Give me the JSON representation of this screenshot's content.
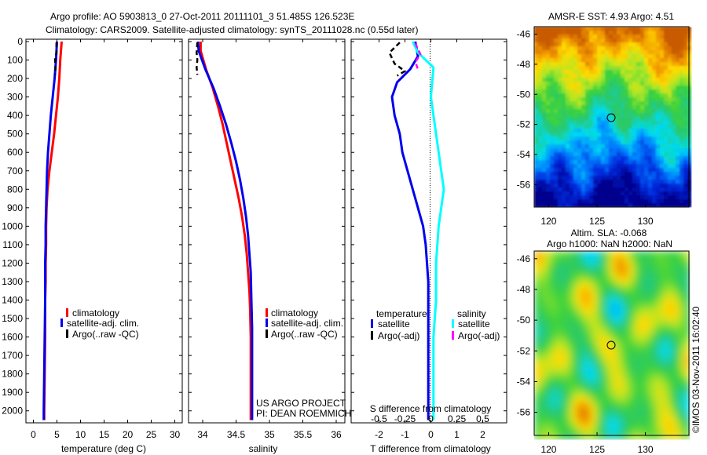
{
  "header": {
    "title_line1": "Argo profile: AO 5903813_0 27-Oct-2011 20111101_3 51.485S 126.523E",
    "title_line2": "Climatology: CARS2009. Satellite-adjusted climatology: synTS_20111028.nc (0.55d later)"
  },
  "colors": {
    "climatology": "#ff0000",
    "satellite": "#0000ee",
    "argo": "#000000",
    "salinity_satellite": "#00ffff",
    "salinity_argo": "#ff00ff"
  },
  "chart_data": [
    {
      "type": "line",
      "id": "temperature",
      "xlabel": "temperature (deg C)",
      "ylim": [
        0,
        2050
      ],
      "xlim": [
        -1,
        32
      ],
      "xticks": [
        0,
        5,
        10,
        15,
        20,
        25,
        30
      ],
      "yticks": [
        0,
        100,
        200,
        300,
        400,
        500,
        600,
        700,
        800,
        900,
        1000,
        1100,
        1200,
        1300,
        1400,
        1500,
        1600,
        1700,
        1800,
        1900,
        2000
      ],
      "legend": [
        "climatology",
        "satellite-adj. clim.",
        "Argo(..raw -QC)"
      ],
      "series": [
        {
          "name": "climatology",
          "color": "#ff0000",
          "points": [
            [
              6.0,
              0
            ],
            [
              5.7,
              100
            ],
            [
              5.5,
              200
            ],
            [
              5.2,
              300
            ],
            [
              4.8,
              400
            ],
            [
              4.4,
              500
            ],
            [
              3.9,
              600
            ],
            [
              3.4,
              700
            ],
            [
              3.0,
              800
            ],
            [
              2.8,
              900
            ],
            [
              2.7,
              1000
            ],
            [
              2.7,
              1100
            ],
            [
              2.6,
              1200
            ],
            [
              2.6,
              1300
            ],
            [
              2.5,
              1400
            ],
            [
              2.5,
              1600
            ],
            [
              2.4,
              1800
            ],
            [
              2.3,
              2000
            ],
            [
              2.3,
              2050
            ]
          ]
        },
        {
          "name": "satellite-adj. clim.",
          "color": "#0000ee",
          "points": [
            [
              5.0,
              0
            ],
            [
              4.8,
              100
            ],
            [
              4.5,
              200
            ],
            [
              4.1,
              300
            ],
            [
              3.7,
              400
            ],
            [
              3.4,
              500
            ],
            [
              3.1,
              600
            ],
            [
              2.9,
              700
            ],
            [
              2.8,
              800
            ],
            [
              2.7,
              900
            ],
            [
              2.6,
              1000
            ],
            [
              2.6,
              1100
            ],
            [
              2.5,
              1200
            ],
            [
              2.5,
              1400
            ],
            [
              2.4,
              1600
            ],
            [
              2.3,
              1800
            ],
            [
              2.2,
              2000
            ],
            [
              2.2,
              2050
            ]
          ]
        },
        {
          "name": "Argo(..raw -QC)",
          "color": "#000000",
          "dashed": true,
          "points": [
            [
              4.9,
              5
            ],
            [
              4.9,
              60
            ],
            [
              4.6,
              100
            ],
            [
              4.7,
              140
            ],
            [
              4.6,
              180
            ]
          ]
        }
      ]
    },
    {
      "type": "line",
      "id": "salinity",
      "xlabel": "salinity",
      "ylim": [
        0,
        2050
      ],
      "xlim": [
        33.8,
        36.1
      ],
      "xticks": [
        34,
        34.5,
        35,
        35.5,
        36
      ],
      "legend": [
        "climatology",
        "satellite-adj. clim.",
        "Argo(..raw -QC)"
      ],
      "annotation_line1": "US ARGO PROJECT",
      "annotation_line2": "PI: DEAN ROEMMICH",
      "series": [
        {
          "name": "climatology",
          "color": "#ff0000",
          "points": [
            [
              33.97,
              0
            ],
            [
              33.97,
              50
            ],
            [
              34.05,
              150
            ],
            [
              34.15,
              250
            ],
            [
              34.23,
              350
            ],
            [
              34.3,
              450
            ],
            [
              34.36,
              550
            ],
            [
              34.42,
              650
            ],
            [
              34.48,
              750
            ],
            [
              34.54,
              850
            ],
            [
              34.59,
              950
            ],
            [
              34.63,
              1050
            ],
            [
              34.66,
              1150
            ],
            [
              34.68,
              1250
            ],
            [
              34.7,
              1350
            ],
            [
              34.71,
              1450
            ],
            [
              34.72,
              1600
            ],
            [
              34.72,
              1800
            ],
            [
              34.72,
              2000
            ],
            [
              34.72,
              2050
            ]
          ]
        },
        {
          "name": "satellite-adj. clim.",
          "color": "#0000ee",
          "points": [
            [
              33.93,
              0
            ],
            [
              33.94,
              50
            ],
            [
              34.04,
              150
            ],
            [
              34.16,
              250
            ],
            [
              34.26,
              350
            ],
            [
              34.35,
              450
            ],
            [
              34.43,
              550
            ],
            [
              34.5,
              650
            ],
            [
              34.56,
              750
            ],
            [
              34.61,
              850
            ],
            [
              34.65,
              950
            ],
            [
              34.68,
              1050
            ],
            [
              34.7,
              1150
            ],
            [
              34.72,
              1250
            ],
            [
              34.73,
              1400
            ],
            [
              34.74,
              1550
            ],
            [
              34.74,
              1750
            ],
            [
              34.74,
              2000
            ],
            [
              34.74,
              2050
            ]
          ]
        },
        {
          "name": "Argo(..raw -QC)",
          "color": "#000000",
          "dashed": true,
          "points": [
            [
              33.92,
              5
            ],
            [
              33.91,
              60
            ],
            [
              33.92,
              100
            ],
            [
              33.91,
              140
            ],
            [
              33.92,
              180
            ]
          ]
        }
      ]
    },
    {
      "type": "line",
      "id": "difference",
      "xlabel": "T difference from climatology",
      "top_xlabel": "S difference from climatology",
      "ylim": [
        0,
        2050
      ],
      "xlim": [
        -3,
        3
      ],
      "xticks": [
        -2,
        -1,
        0,
        1,
        2
      ],
      "top_xticks": [
        {
          "label": "-0.5",
          "x": -2
        },
        {
          "label": "-0.25",
          "x": -1
        },
        {
          "label": "0",
          "x": 0
        },
        {
          "label": "0.25",
          "x": 1
        },
        {
          "label": "0.5",
          "x": 2
        }
      ],
      "legend_temperature_title": "temperature",
      "legend_salinity_title": "salinity",
      "legend_temperature": [
        "satellite",
        "Argo(-adj)"
      ],
      "legend_salinity": [
        "satellite",
        "Argo(-adj)"
      ],
      "series": [
        {
          "name": "temperature satellite",
          "color": "#0000ee",
          "points": [
            [
              -0.6,
              0
            ],
            [
              -0.5,
              80
            ],
            [
              -0.8,
              150
            ],
            [
              -1.3,
              220
            ],
            [
              -1.5,
              300
            ],
            [
              -1.4,
              400
            ],
            [
              -1.2,
              500
            ],
            [
              -1.1,
              600
            ],
            [
              -0.9,
              700
            ],
            [
              -0.7,
              800
            ],
            [
              -0.5,
              900
            ],
            [
              -0.3,
              1000
            ],
            [
              -0.2,
              1100
            ],
            [
              -0.1,
              1300
            ],
            [
              -0.1,
              1500
            ],
            [
              -0.1,
              1700
            ],
            [
              -0.1,
              2000
            ],
            [
              -0.1,
              2050
            ]
          ]
        },
        {
          "name": "salinity satellite",
          "color": "#00ffff",
          "points": [
            [
              -0.7,
              0
            ],
            [
              -0.5,
              60
            ],
            [
              0.1,
              140
            ],
            [
              0.0,
              300
            ],
            [
              0.2,
              500
            ],
            [
              0.4,
              700
            ],
            [
              0.5,
              800
            ],
            [
              0.4,
              900
            ],
            [
              0.3,
              1000
            ],
            [
              0.2,
              1200
            ],
            [
              0.2,
              1400
            ],
            [
              0.1,
              1600
            ],
            [
              0.1,
              1800
            ],
            [
              0.1,
              2000
            ],
            [
              0.1,
              2050
            ]
          ]
        },
        {
          "name": "temperature Argo(-adj)",
          "color": "#000000",
          "dashed": true,
          "points": [
            [
              -1.2,
              5
            ],
            [
              -1.6,
              60
            ],
            [
              -1.4,
              120
            ],
            [
              -1.0,
              160
            ],
            [
              -1.3,
              185
            ]
          ]
        },
        {
          "name": "salinity Argo(-adj)",
          "color": "#ff00ff",
          "dashed": true,
          "points": [
            [
              -0.6,
              10
            ],
            [
              -0.4,
              70
            ],
            [
              -0.6,
              110
            ],
            [
              -0.5,
              150
            ]
          ]
        }
      ]
    },
    {
      "type": "heatmap",
      "id": "sst-map",
      "title": "AMSR-E SST: 4.93 Argo: 4.51",
      "xlim": [
        118.5,
        134.5
      ],
      "ylim": [
        -57.5,
        -45.5
      ],
      "xticks": [
        120,
        125,
        130
      ],
      "yticks": [
        -46,
        -48,
        -50,
        -52,
        -54,
        -56
      ],
      "marker": [
        126.523,
        -51.485
      ]
    },
    {
      "type": "heatmap",
      "id": "sla-map",
      "title_line1": "Altim. SLA: -0.068",
      "title_line2": "Argo h1000: NaN h2000: NaN",
      "xlim": [
        118.5,
        134.5
      ],
      "ylim": [
        -57.5,
        -45.5
      ],
      "xticks": [
        120,
        125,
        130
      ],
      "yticks": [
        -46,
        -48,
        -50,
        -52,
        -54,
        -56
      ],
      "marker": [
        126.523,
        -51.485
      ]
    }
  ],
  "footer": {
    "copyright": "©IMOS 03-Nov-2011 16:02:40"
  }
}
